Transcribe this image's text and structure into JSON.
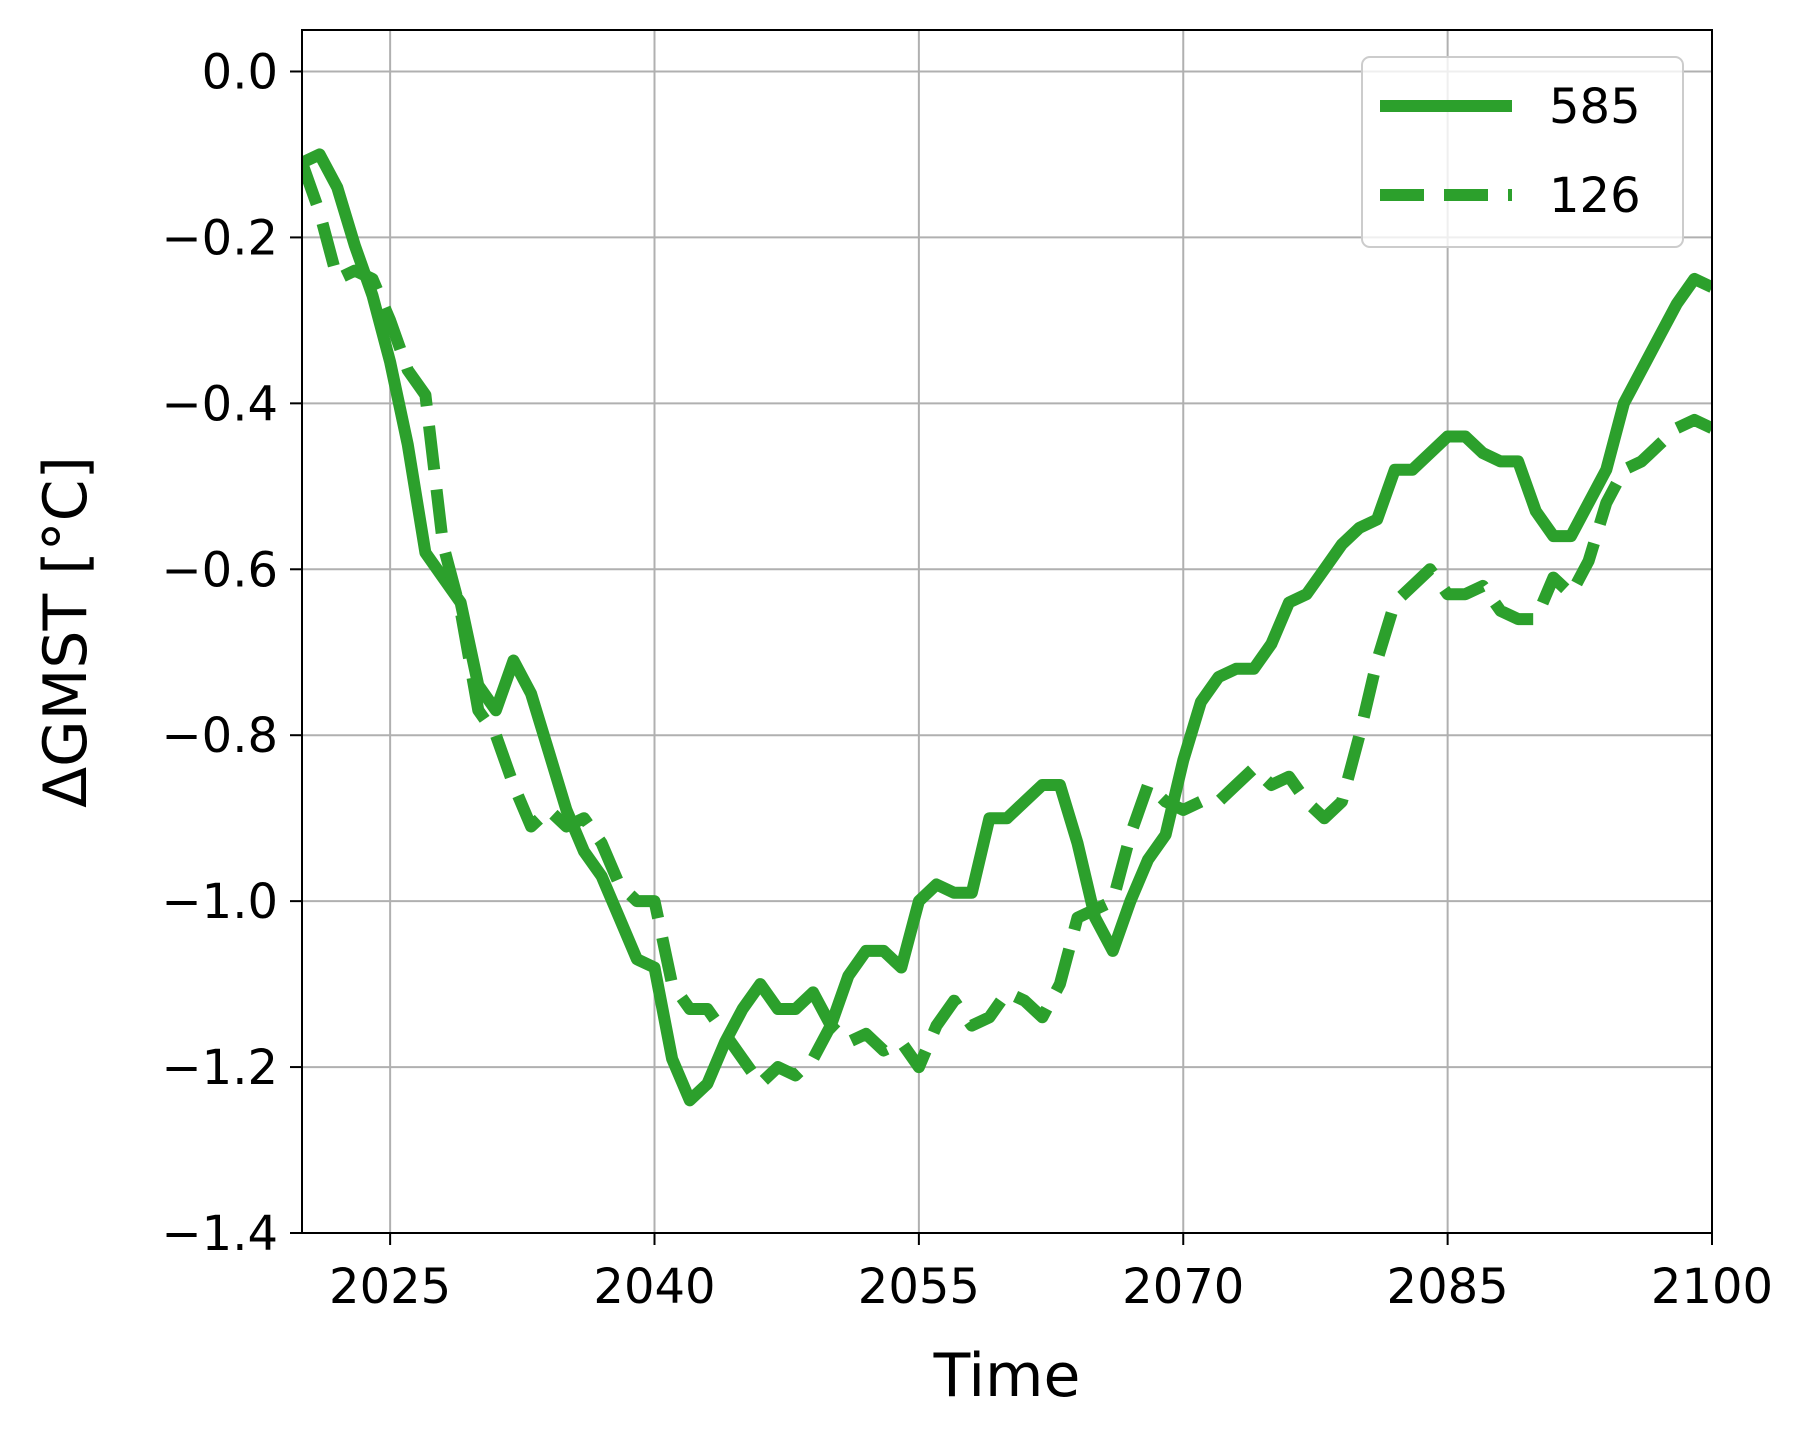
{
  "chart_data": {
    "type": "line",
    "xlabel": "Time",
    "ylabel": "ΔGMST [°C]",
    "xlim": [
      2020,
      2100
    ],
    "ylim": [
      -1.4,
      0.05
    ],
    "xticks": [
      2025,
      2040,
      2055,
      2070,
      2085,
      2100
    ],
    "yticks": [
      0.0,
      -0.2,
      -0.4,
      -0.6,
      -0.8,
      -1.0,
      -1.2,
      -1.4
    ],
    "xtick_labels": [
      "2025",
      "2040",
      "2055",
      "2070",
      "2085",
      "2100"
    ],
    "ytick_labels": [
      "0.0",
      "−0.2",
      "−0.4",
      "−0.6",
      "−0.8",
      "−1.0",
      "−1.2",
      "−1.4"
    ],
    "grid": true,
    "legend_position": "top-right",
    "color": "#2ca02c",
    "series": [
      {
        "name": "585",
        "style": "solid",
        "x": [
          2020,
          2021,
          2022,
          2023,
          2024,
          2025,
          2026,
          2027,
          2028,
          2029,
          2030,
          2031,
          2032,
          2033,
          2034,
          2035,
          2036,
          2037,
          2038,
          2039,
          2040,
          2041,
          2042,
          2043,
          2044,
          2045,
          2046,
          2047,
          2048,
          2049,
          2050,
          2051,
          2052,
          2053,
          2054,
          2055,
          2056,
          2057,
          2058,
          2059,
          2060,
          2061,
          2062,
          2063,
          2064,
          2065,
          2066,
          2067,
          2068,
          2069,
          2070,
          2071,
          2072,
          2073,
          2074,
          2075,
          2076,
          2077,
          2078,
          2079,
          2080,
          2081,
          2082,
          2083,
          2084,
          2085,
          2086,
          2087,
          2088,
          2089,
          2090,
          2091,
          2092,
          2093,
          2094,
          2095,
          2096,
          2097,
          2098,
          2099,
          2100
        ],
        "y": [
          -0.11,
          -0.1,
          -0.14,
          -0.21,
          -0.27,
          -0.35,
          -0.45,
          -0.58,
          -0.61,
          -0.64,
          -0.74,
          -0.77,
          -0.71,
          -0.75,
          -0.82,
          -0.89,
          -0.94,
          -0.97,
          -1.02,
          -1.07,
          -1.08,
          -1.19,
          -1.24,
          -1.22,
          -1.17,
          -1.13,
          -1.1,
          -1.13,
          -1.13,
          -1.11,
          -1.15,
          -1.09,
          -1.06,
          -1.06,
          -1.08,
          -1.0,
          -0.98,
          -0.99,
          -0.99,
          -0.9,
          -0.9,
          -0.88,
          -0.86,
          -0.86,
          -0.93,
          -1.02,
          -1.06,
          -1.0,
          -0.95,
          -0.92,
          -0.83,
          -0.76,
          -0.73,
          -0.72,
          -0.72,
          -0.69,
          -0.64,
          -0.63,
          -0.6,
          -0.57,
          -0.55,
          -0.54,
          -0.48,
          -0.48,
          -0.46,
          -0.44,
          -0.44,
          -0.46,
          -0.47,
          -0.47,
          -0.53,
          -0.56,
          -0.56,
          -0.52,
          -0.48,
          -0.4,
          -0.36,
          -0.32,
          -0.28,
          -0.25,
          -0.26
        ]
      },
      {
        "name": "126",
        "style": "dashed",
        "x": [
          2020,
          2021,
          2022,
          2023,
          2024,
          2025,
          2026,
          2027,
          2028,
          2029,
          2030,
          2031,
          2032,
          2033,
          2034,
          2035,
          2036,
          2037,
          2038,
          2039,
          2040,
          2041,
          2042,
          2043,
          2044,
          2045,
          2046,
          2047,
          2048,
          2049,
          2050,
          2051,
          2052,
          2053,
          2054,
          2055,
          2056,
          2057,
          2058,
          2059,
          2060,
          2061,
          2062,
          2063,
          2064,
          2065,
          2066,
          2067,
          2068,
          2069,
          2070,
          2071,
          2072,
          2073,
          2074,
          2075,
          2076,
          2077,
          2078,
          2079,
          2080,
          2081,
          2082,
          2083,
          2084,
          2085,
          2086,
          2087,
          2088,
          2089,
          2090,
          2091,
          2092,
          2093,
          2094,
          2095,
          2096,
          2097,
          2098,
          2099,
          2100
        ],
        "y": [
          -0.11,
          -0.17,
          -0.25,
          -0.24,
          -0.25,
          -0.3,
          -0.36,
          -0.39,
          -0.57,
          -0.65,
          -0.77,
          -0.8,
          -0.86,
          -0.91,
          -0.89,
          -0.91,
          -0.9,
          -0.93,
          -0.98,
          -1.0,
          -1.0,
          -1.1,
          -1.13,
          -1.13,
          -1.16,
          -1.19,
          -1.22,
          -1.2,
          -1.21,
          -1.19,
          -1.15,
          -1.17,
          -1.16,
          -1.18,
          -1.17,
          -1.2,
          -1.15,
          -1.12,
          -1.15,
          -1.14,
          -1.11,
          -1.12,
          -1.14,
          -1.1,
          -1.02,
          -1.01,
          -1.0,
          -0.92,
          -0.86,
          -0.88,
          -0.89,
          -0.88,
          -0.88,
          -0.86,
          -0.84,
          -0.86,
          -0.85,
          -0.88,
          -0.9,
          -0.88,
          -0.8,
          -0.71,
          -0.64,
          -0.62,
          -0.6,
          -0.63,
          -0.63,
          -0.62,
          -0.65,
          -0.66,
          -0.66,
          -0.61,
          -0.63,
          -0.59,
          -0.52,
          -0.48,
          -0.47,
          -0.45,
          -0.43,
          -0.42,
          -0.43
        ]
      }
    ]
  }
}
